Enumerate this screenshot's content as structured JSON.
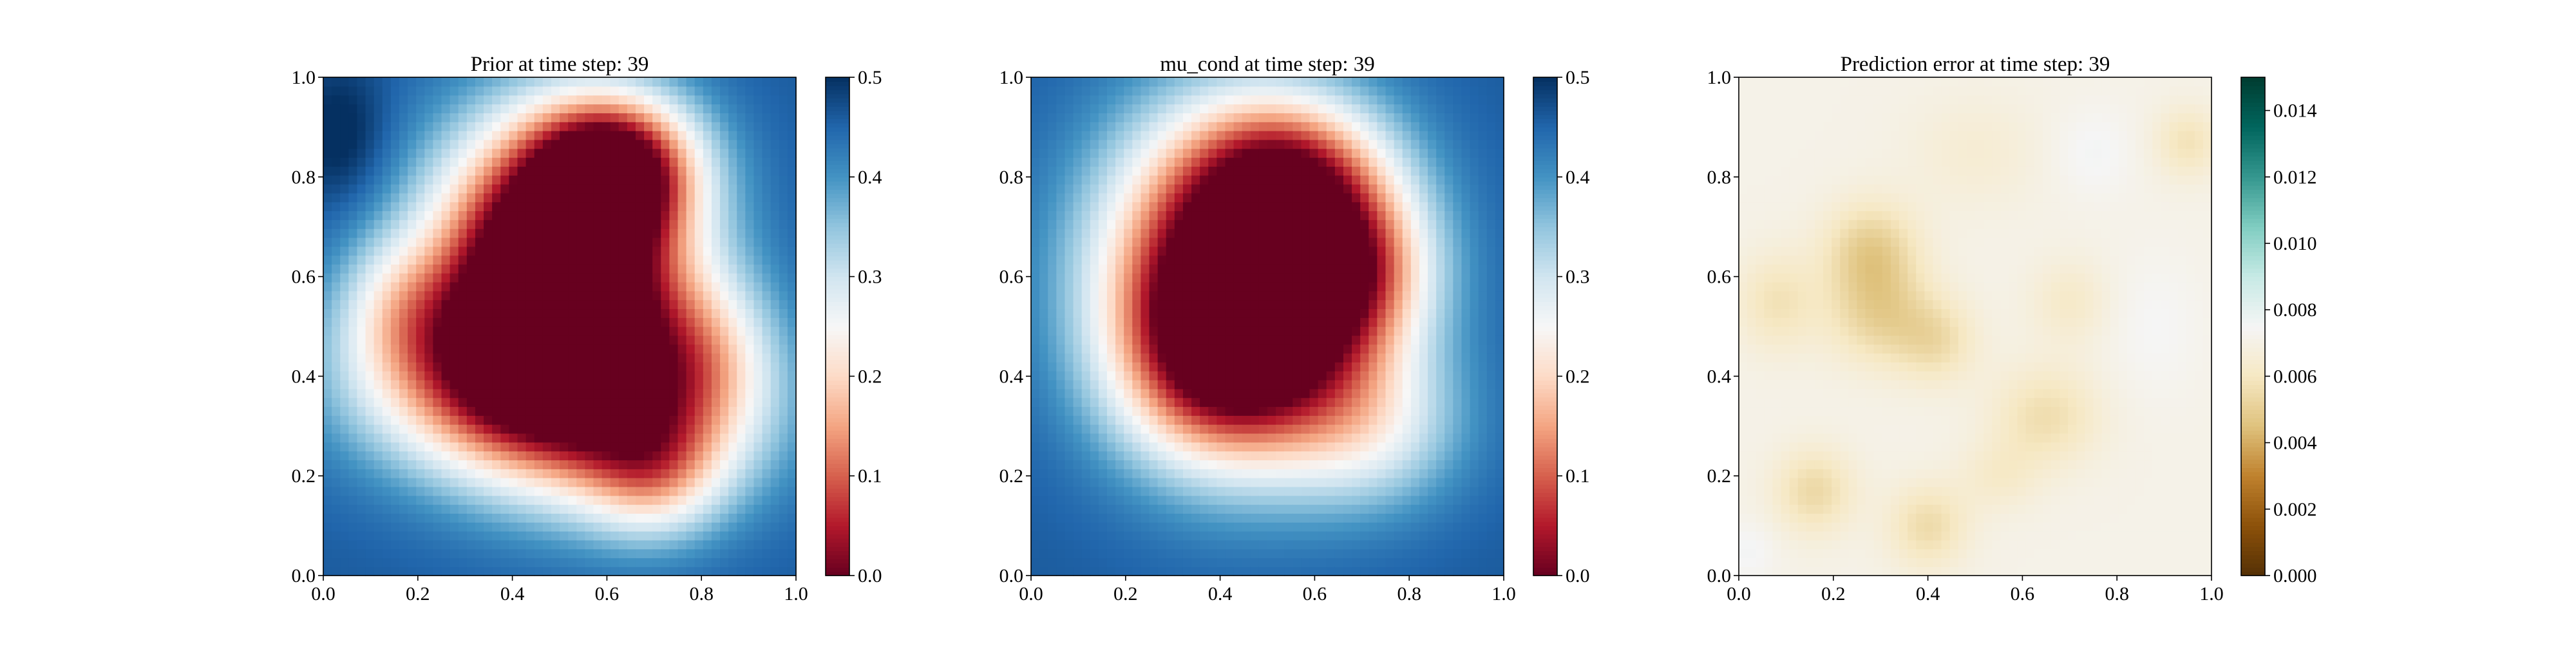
{
  "figure": {
    "background": "#ffffff"
  },
  "chart_data": [
    {
      "type": "heatmap",
      "title": "Prior at time step: 39",
      "xlabel": "",
      "ylabel": "",
      "xlim": [
        0.0,
        1.0
      ],
      "ylim": [
        0.0,
        1.0
      ],
      "x_ticks": [
        "0.0",
        "0.2",
        "0.4",
        "0.6",
        "0.8",
        "1.0"
      ],
      "y_ticks": [
        "0.0",
        "0.2",
        "0.4",
        "0.6",
        "0.8",
        "1.0"
      ],
      "colormap": "RdBu",
      "colormap_stops": [
        "#67001f",
        "#b2182b",
        "#d6604d",
        "#f4a582",
        "#fddbc7",
        "#f7f7f7",
        "#d1e5f0",
        "#92c5de",
        "#4393c3",
        "#2166ac",
        "#053061"
      ],
      "colorbar": {
        "range": [
          0.0,
          0.5
        ],
        "ticks": [
          "0.0",
          "0.1",
          "0.2",
          "0.3",
          "0.4",
          "0.5"
        ]
      },
      "field": {
        "background": 0.46,
        "blobs": [
          {
            "x": 0.5,
            "y": 0.64,
            "sx": 0.18,
            "sy": 0.19,
            "amp": -0.62
          },
          {
            "x": 0.62,
            "y": 0.82,
            "sx": 0.12,
            "sy": 0.1,
            "amp": -0.35
          },
          {
            "x": 0.35,
            "y": 0.42,
            "sx": 0.22,
            "sy": 0.14,
            "amp": -0.3
          },
          {
            "x": 0.62,
            "y": 0.32,
            "sx": 0.22,
            "sy": 0.14,
            "amp": -0.28
          },
          {
            "x": 0.7,
            "y": 0.2,
            "sx": 0.1,
            "sy": 0.09,
            "amp": -0.15
          },
          {
            "x": 0.82,
            "y": 0.45,
            "sx": 0.1,
            "sy": 0.12,
            "amp": -0.12
          },
          {
            "x": 0.15,
            "y": 0.55,
            "sx": 0.08,
            "sy": 0.1,
            "amp": -0.08
          },
          {
            "x": 0.04,
            "y": 0.88,
            "sx": 0.07,
            "sy": 0.1,
            "amp": 0.06
          }
        ]
      }
    },
    {
      "type": "heatmap",
      "title": "mu_cond at time step: 39",
      "xlabel": "",
      "ylabel": "",
      "xlim": [
        0.0,
        1.0
      ],
      "ylim": [
        0.0,
        1.0
      ],
      "x_ticks": [
        "0.0",
        "0.2",
        "0.4",
        "0.6",
        "0.8",
        "1.0"
      ],
      "y_ticks": [
        "0.0",
        "0.2",
        "0.4",
        "0.6",
        "0.8",
        "1.0"
      ],
      "colormap": "RdBu",
      "colormap_stops": [
        "#67001f",
        "#b2182b",
        "#d6604d",
        "#f4a582",
        "#fddbc7",
        "#f7f7f7",
        "#d1e5f0",
        "#92c5de",
        "#4393c3",
        "#2166ac",
        "#053061"
      ],
      "colorbar": {
        "range": [
          0.0,
          0.5
        ],
        "ticks": [
          "0.0",
          "0.1",
          "0.2",
          "0.3",
          "0.4",
          "0.5"
        ]
      },
      "field": {
        "background": 0.46,
        "blobs": [
          {
            "x": 0.45,
            "y": 0.6,
            "sx": 0.2,
            "sy": 0.22,
            "amp": -0.6
          },
          {
            "x": 0.4,
            "y": 0.42,
            "sx": 0.15,
            "sy": 0.14,
            "amp": -0.2
          },
          {
            "x": 0.68,
            "y": 0.62,
            "sx": 0.12,
            "sy": 0.12,
            "amp": -0.22
          },
          {
            "x": 0.72,
            "y": 0.3,
            "sx": 0.14,
            "sy": 0.12,
            "amp": -0.15
          },
          {
            "x": 0.55,
            "y": 0.82,
            "sx": 0.14,
            "sy": 0.1,
            "amp": -0.18
          }
        ]
      }
    },
    {
      "type": "heatmap",
      "title": "Prediction error at time step: 39",
      "xlabel": "",
      "ylabel": "",
      "xlim": [
        0.0,
        1.0
      ],
      "ylim": [
        0.0,
        1.0
      ],
      "x_ticks": [
        "0.0",
        "0.2",
        "0.4",
        "0.6",
        "0.8",
        "1.0"
      ],
      "y_ticks": [
        "0.0",
        "0.2",
        "0.4",
        "0.6",
        "0.8",
        "1.0"
      ],
      "colormap": "BrBG",
      "colormap_stops": [
        "#543005",
        "#8c510a",
        "#bf812d",
        "#dfc27d",
        "#f6e8c3",
        "#f5f5f5",
        "#c7eae5",
        "#80cdc1",
        "#35978f",
        "#01665e",
        "#003c30"
      ],
      "colorbar": {
        "range": [
          0.0,
          0.015
        ],
        "ticks": [
          "0.000",
          "0.002",
          "0.004",
          "0.006",
          "0.008",
          "0.010",
          "0.012",
          "0.014"
        ]
      },
      "field": {
        "background": 0.0071,
        "blobs": [
          {
            "x": 0.28,
            "y": 0.65,
            "sx": 0.07,
            "sy": 0.07,
            "amp": -0.0022
          },
          {
            "x": 0.3,
            "y": 0.52,
            "sx": 0.08,
            "sy": 0.07,
            "amp": -0.0018
          },
          {
            "x": 0.42,
            "y": 0.47,
            "sx": 0.06,
            "sy": 0.06,
            "amp": -0.0014
          },
          {
            "x": 0.08,
            "y": 0.55,
            "sx": 0.06,
            "sy": 0.07,
            "amp": -0.0013
          },
          {
            "x": 0.16,
            "y": 0.17,
            "sx": 0.06,
            "sy": 0.06,
            "amp": -0.0017
          },
          {
            "x": 0.4,
            "y": 0.1,
            "sx": 0.06,
            "sy": 0.06,
            "amp": -0.0016
          },
          {
            "x": 0.65,
            "y": 0.32,
            "sx": 0.08,
            "sy": 0.07,
            "amp": -0.0015
          },
          {
            "x": 0.7,
            "y": 0.55,
            "sx": 0.06,
            "sy": 0.06,
            "amp": -0.0009
          },
          {
            "x": 0.95,
            "y": 0.87,
            "sx": 0.05,
            "sy": 0.05,
            "amp": -0.0013
          },
          {
            "x": 0.55,
            "y": 0.2,
            "sx": 0.06,
            "sy": 0.05,
            "amp": -0.0008
          },
          {
            "x": 0.5,
            "y": 0.85,
            "sx": 0.1,
            "sy": 0.08,
            "amp": -0.0006
          },
          {
            "x": 0.75,
            "y": 0.85,
            "sx": 0.06,
            "sy": 0.06,
            "amp": 0.0005
          },
          {
            "x": 0.88,
            "y": 0.5,
            "sx": 0.07,
            "sy": 0.1,
            "amp": 0.0004
          },
          {
            "x": 0.02,
            "y": 0.05,
            "sx": 0.04,
            "sy": 0.04,
            "amp": 0.0005
          }
        ]
      }
    }
  ]
}
